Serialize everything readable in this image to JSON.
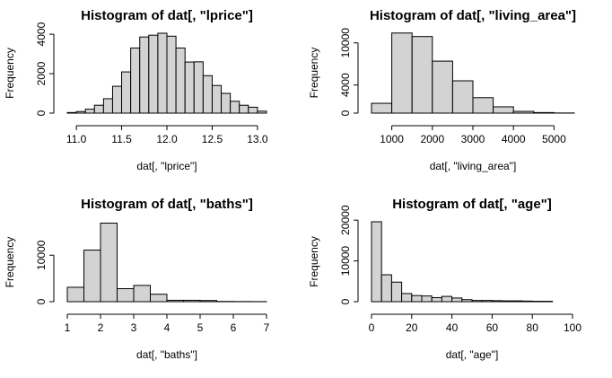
{
  "chart_data": [
    {
      "type": "histogram",
      "title": "Histogram of dat[, \"lprice\"]",
      "xlabel": "dat[, \"lprice\"]",
      "ylabel": "Frequency",
      "color": "#d3d3d3",
      "bins": [
        10.9,
        11.0,
        11.1,
        11.2,
        11.3,
        11.4,
        11.5,
        11.6,
        11.7,
        11.8,
        11.9,
        12.0,
        12.1,
        12.2,
        12.3,
        12.4,
        12.5,
        12.6,
        12.7,
        12.8,
        12.9,
        13.0,
        13.1
      ],
      "values": [
        30,
        80,
        200,
        400,
        730,
        1360,
        2090,
        3300,
        3860,
        3950,
        4050,
        3900,
        3300,
        2590,
        2600,
        1900,
        1400,
        1000,
        600,
        400,
        300,
        100
      ],
      "xlim": [
        10.9,
        13.1
      ],
      "xticks": [
        {
          "value": 11,
          "label": "11.0"
        },
        11.5,
        {
          "value": 12,
          "label": "12.0"
        },
        12.5,
        {
          "value": 13,
          "label": "13.0"
        }
      ],
      "ylim": [
        0,
        4050
      ],
      "yticks": [
        0,
        2000,
        4000
      ]
    },
    {
      "type": "histogram",
      "title": "Histogram of dat[, \"living_area\"]",
      "xlabel": "dat[, \"living_area\"]",
      "ylabel": "Frequency",
      "color": "#d3d3d3",
      "bins": [
        500,
        1000,
        1500,
        2000,
        2500,
        3000,
        3500,
        4000,
        4500,
        5000,
        5500
      ],
      "values": [
        1400,
        11400,
        10900,
        7400,
        4600,
        2200,
        900,
        250,
        80,
        20
      ],
      "xlim": [
        500,
        5500
      ],
      "xticks": [
        1000,
        2000,
        3000,
        4000,
        5000
      ],
      "ylim": [
        0,
        11500
      ],
      "yticks": [
        0,
        4000,
        10000
      ]
    },
    {
      "type": "histogram",
      "title": "Histogram of dat[, \"baths\"]",
      "xlabel": "dat[, \"baths\"]",
      "ylabel": "Frequency",
      "color": "#d3d3d3",
      "bins": [
        1,
        1.5,
        2,
        2.5,
        3,
        3.5,
        4,
        4.5,
        5,
        5.5,
        6,
        6.5,
        7
      ],
      "values": [
        3100,
        11100,
        16900,
        2800,
        3500,
        1600,
        300,
        300,
        250,
        50,
        30,
        20
      ],
      "xlim": [
        1,
        7
      ],
      "xticks": [
        1,
        2,
        3,
        4,
        5,
        6,
        7
      ],
      "ylim": [
        0,
        17000
      ],
      "yticks": [
        0,
        10000
      ]
    },
    {
      "type": "histogram",
      "title": "Histogram of dat[, \"age\"]",
      "xlabel": "dat[, \"age\"]",
      "ylabel": "Frequency",
      "color": "#d3d3d3",
      "bins": [
        0,
        5,
        10,
        15,
        20,
        25,
        30,
        35,
        40,
        45,
        50,
        55,
        60,
        65,
        70,
        75,
        80,
        85,
        90
      ],
      "values": [
        19600,
        6600,
        4800,
        2000,
        1500,
        1400,
        1000,
        1300,
        900,
        500,
        300,
        300,
        250,
        200,
        200,
        150,
        100,
        100
      ],
      "xlim": [
        0,
        100
      ],
      "xticks": [
        0,
        20,
        40,
        60,
        80,
        100
      ],
      "ylim": [
        0,
        19600
      ],
      "yticks": [
        0,
        10000,
        20000
      ]
    }
  ]
}
